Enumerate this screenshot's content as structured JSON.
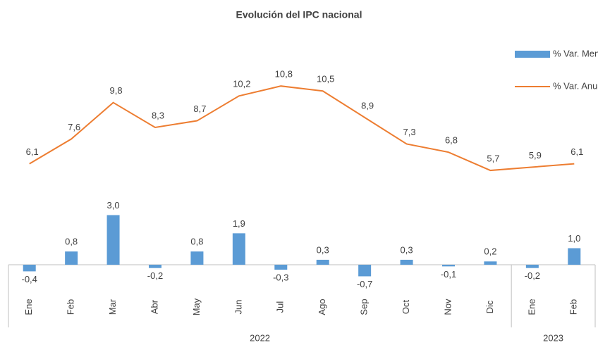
{
  "chart_data": {
    "type": "combo",
    "title": "Evolución del IPC nacional",
    "groups": [
      {
        "label": "2022",
        "categories": [
          "Ene",
          "Feb",
          "Mar",
          "Abr",
          "May",
          "Jun",
          "Jul",
          "Ago",
          "Sep",
          "Oct",
          "Nov",
          "Dic"
        ]
      },
      {
        "label": "2023",
        "categories": [
          "Ene",
          "Feb"
        ]
      }
    ],
    "ylim": [
      -1,
      14
    ],
    "series": [
      {
        "name": "% Var. Mensual",
        "type": "bar",
        "color": "#5b9bd5",
        "values": [
          -0.4,
          0.8,
          3.0,
          -0.2,
          0.8,
          1.9,
          -0.3,
          0.3,
          -0.7,
          0.3,
          -0.1,
          0.2,
          -0.2,
          1.0
        ],
        "value_labels": [
          "-0,4",
          "0,8",
          "3,0",
          "-0,2",
          "0,8",
          "1,9",
          "-0,3",
          "0,3",
          "-0,7",
          "0,3",
          "-0,1",
          "0,2",
          "-0,2",
          "1,0"
        ]
      },
      {
        "name": "% Var. Anual",
        "type": "line",
        "color": "#ed7d31",
        "values": [
          6.1,
          7.6,
          9.8,
          8.3,
          8.7,
          10.2,
          10.8,
          10.5,
          8.9,
          7.3,
          6.8,
          5.7,
          5.9,
          6.1
        ],
        "value_labels": [
          "6,1",
          "7,6",
          "9,8",
          "8,3",
          "8,7",
          "10,2",
          "10,8",
          "10,5",
          "8,9",
          "7,3",
          "6,8",
          "5,7",
          "5,9",
          "6,1"
        ]
      }
    ],
    "legend": "top-right"
  }
}
